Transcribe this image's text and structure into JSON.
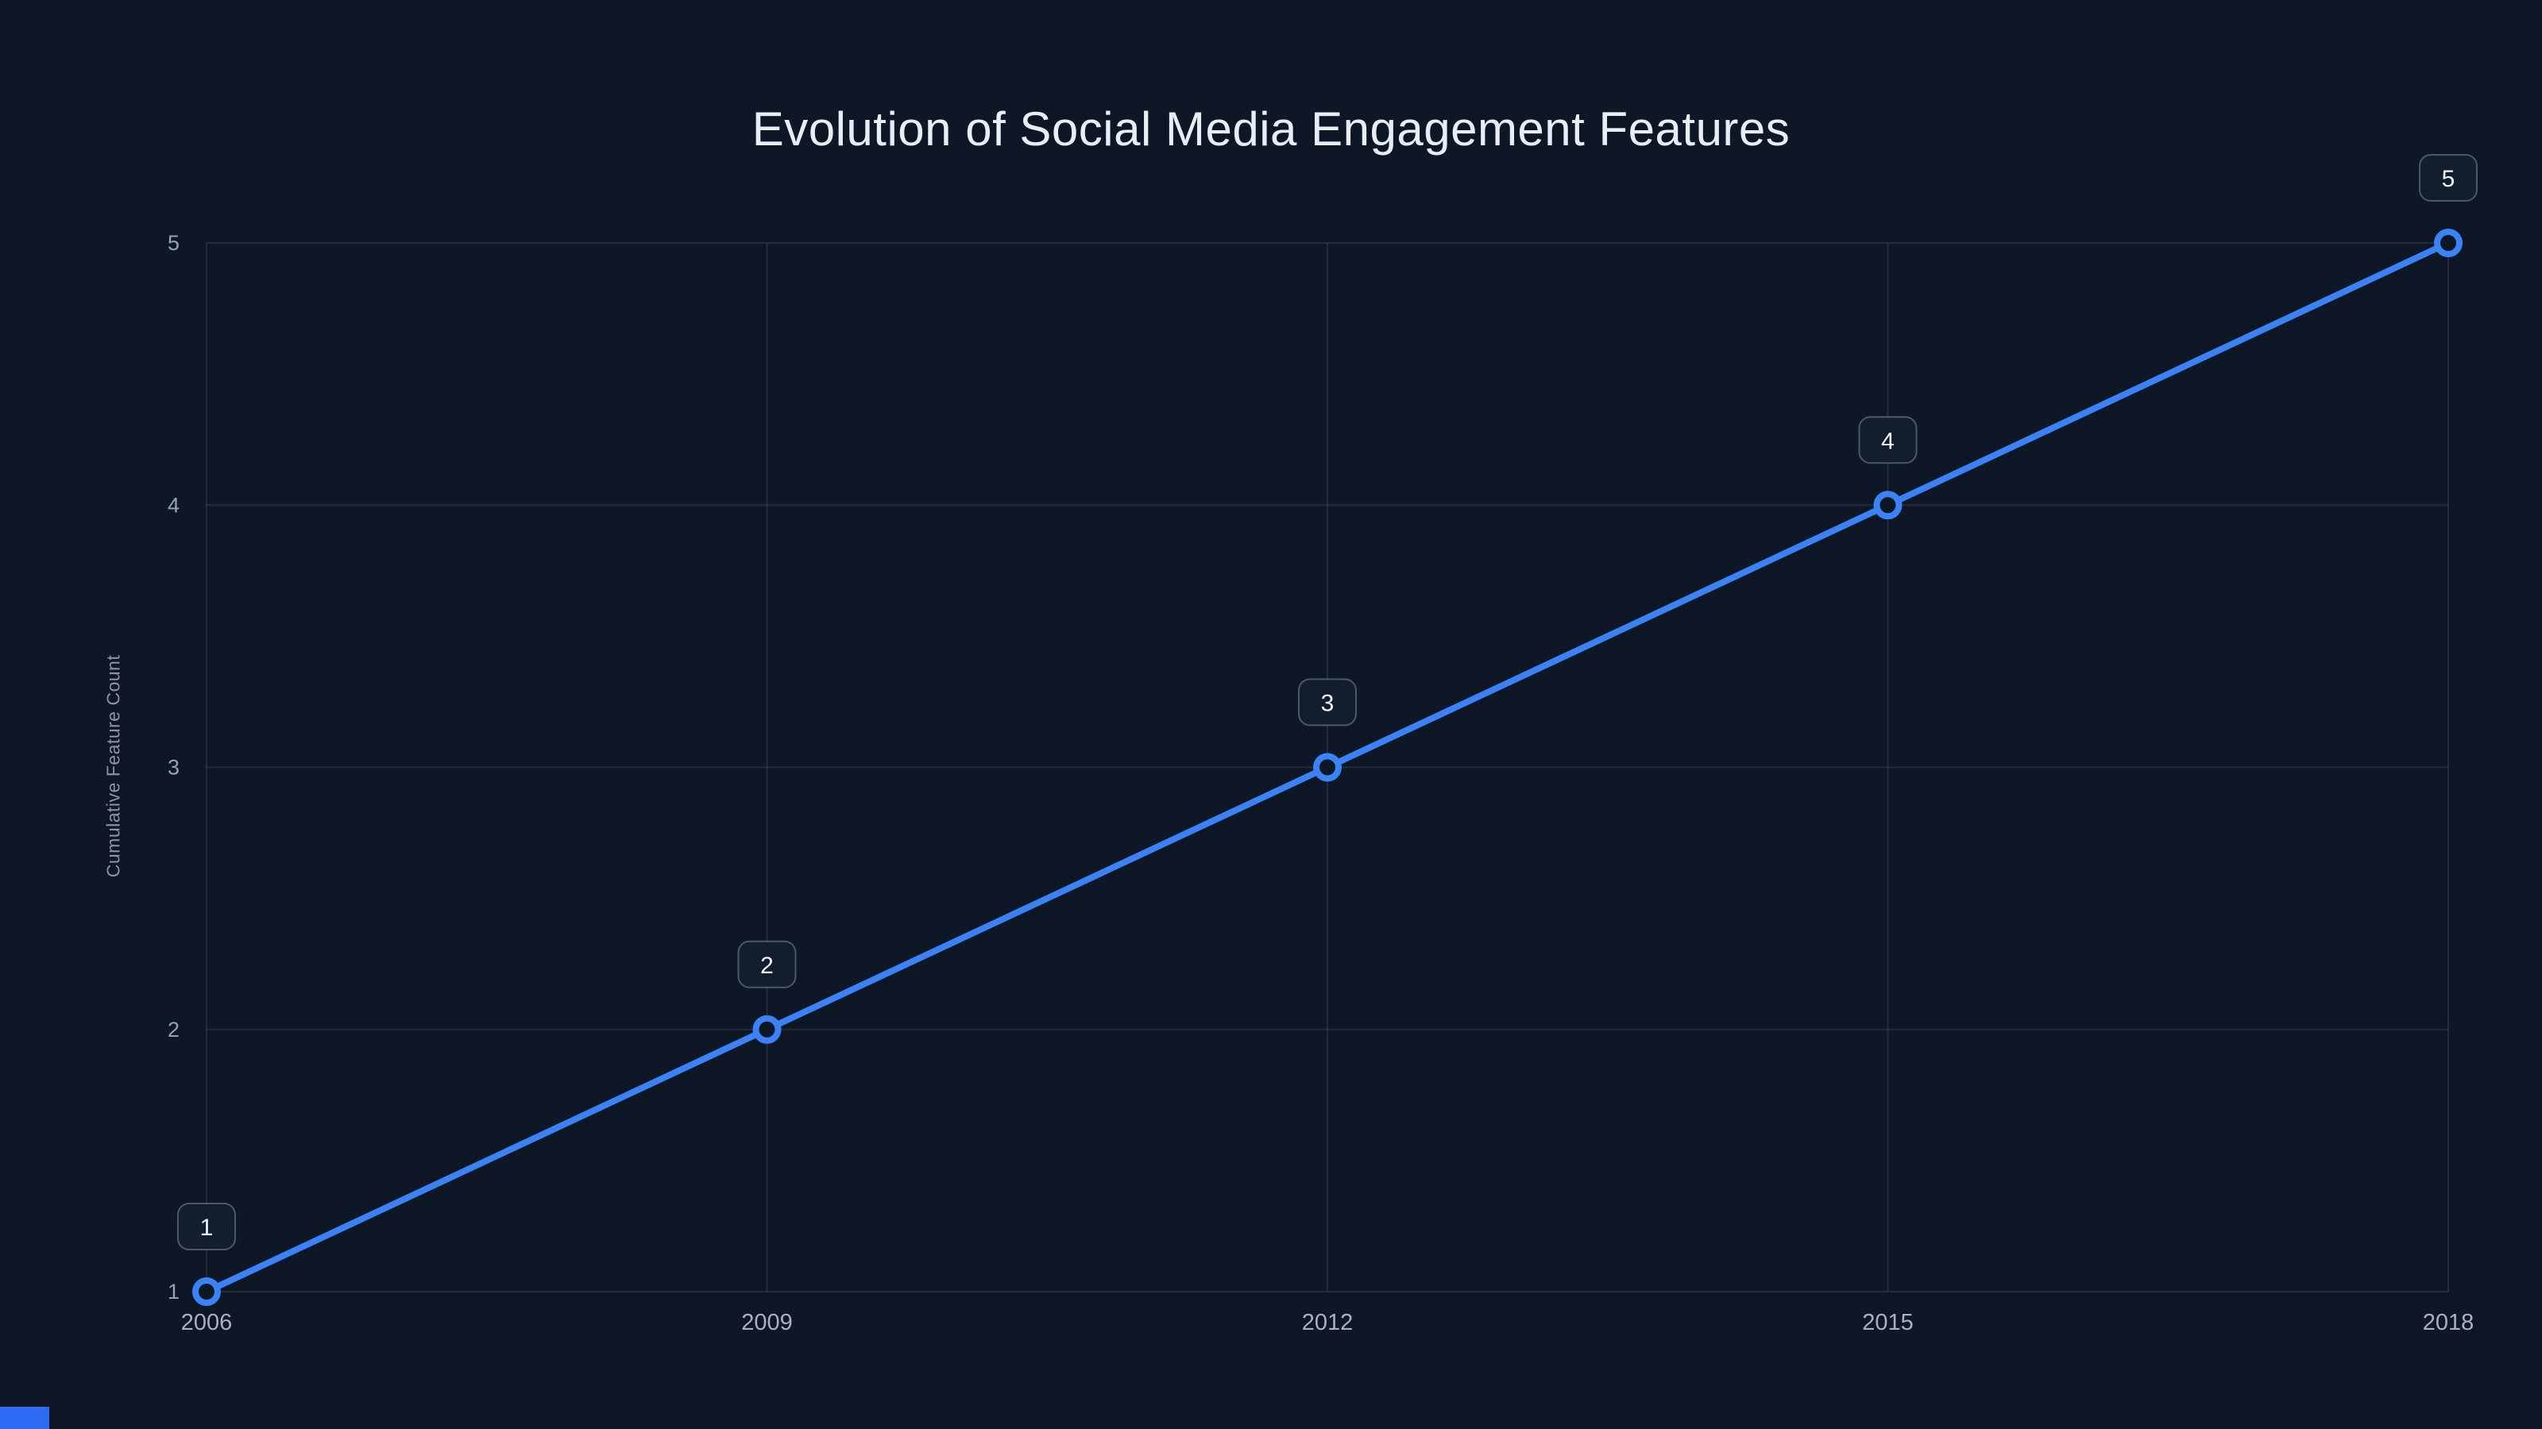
{
  "page": {
    "background": "#0e1726",
    "corner_accent": "#2f6cf6"
  },
  "chart_data": {
    "type": "line",
    "title": "Evolution of Social Media Engagement Features",
    "xlabel": "",
    "ylabel": "Cumulative Feature Count",
    "x": [
      2006,
      2009,
      2012,
      2015,
      2018
    ],
    "xticks": [
      "2006",
      "2009",
      "2012",
      "2015",
      "2018"
    ],
    "series": [
      {
        "name": "Cumulative Feature Count",
        "values": [
          1,
          2,
          3,
          4,
          5
        ]
      }
    ],
    "point_labels": [
      "1",
      "2",
      "3",
      "4",
      "5"
    ],
    "ylim": [
      1,
      5
    ],
    "yticks": [
      1,
      2,
      3,
      4,
      5
    ],
    "grid": true,
    "legend": false,
    "colors": {
      "line": "#3b82f6",
      "marker_fill": "#0e1726",
      "grid": "rgba(140,156,180,0.16)",
      "y_tick_text": "#94a3b8",
      "x_tick_text": "#a8b1c0",
      "title_text": "#e9eef5",
      "badge_bg": "#121d2e",
      "badge_border": "rgba(148,163,184,0.45)",
      "badge_text": "#f1f5f9"
    }
  }
}
